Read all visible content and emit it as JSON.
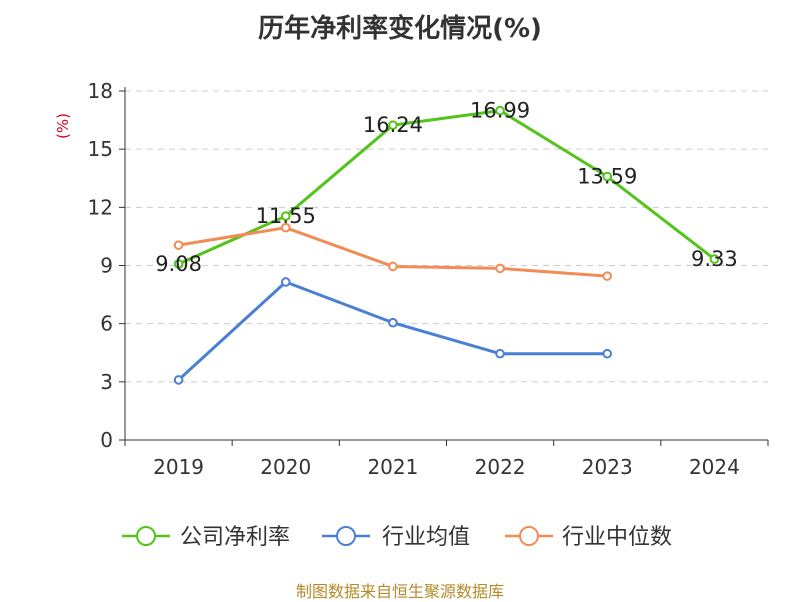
{
  "chart_data": {
    "type": "line",
    "title": "历年净利率变化情况(%)",
    "ylabel": "(%)",
    "xlabel": "",
    "categories": [
      "2019",
      "2020",
      "2021",
      "2022",
      "2023",
      "2024"
    ],
    "ylim": [
      0,
      18
    ],
    "yticks": [
      0,
      3,
      6,
      9,
      12,
      15,
      18
    ],
    "grid": true,
    "legend_position": "bottom",
    "series": [
      {
        "name": "公司净利率",
        "color": "#52c41a",
        "show_labels": true,
        "values": [
          9.08,
          11.55,
          16.24,
          16.99,
          13.59,
          9.33
        ]
      },
      {
        "name": "行业均值",
        "color": "#4a7fd6",
        "show_labels": false,
        "values": [
          3.1,
          8.15,
          6.05,
          4.45,
          4.45,
          null
        ]
      },
      {
        "name": "行业中位数",
        "color": "#f28c57",
        "show_labels": false,
        "values": [
          10.05,
          10.95,
          8.95,
          8.85,
          8.45,
          null
        ]
      }
    ]
  },
  "footer": {
    "source": "制图数据来自恒生聚源数据库"
  }
}
